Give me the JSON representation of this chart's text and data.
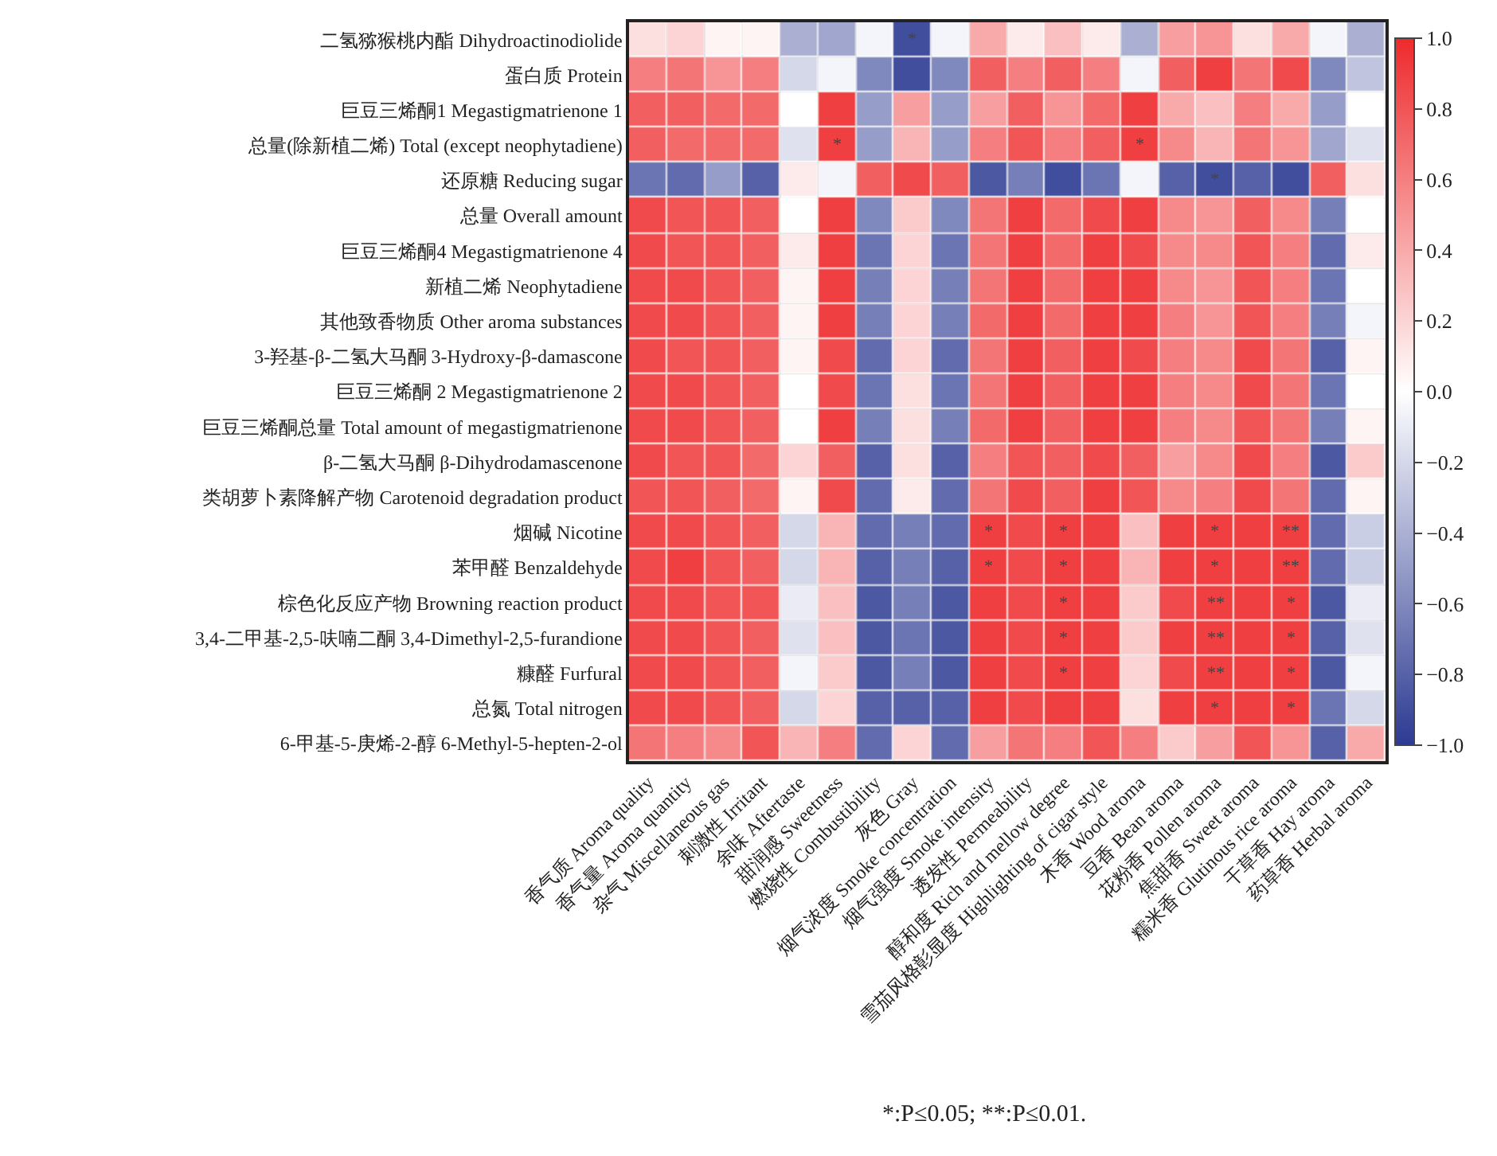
{
  "chart_data": {
    "type": "heatmap",
    "categories": [
      "香气质 Aroma quality",
      "香气量 Aroma quantity",
      "杂气 Miscellaneous gas",
      "刺激性 Irritant",
      "余味 Aftertaste",
      "甜润感 Sweetness",
      "燃烧性 Combustibility",
      "灰色 Gray",
      "烟气浓度 Smoke concentration",
      "烟气强度 Smoke intensity",
      "透发性 Permeability",
      "醇和度 Rich and mellow degree",
      "雪茄风格彰显度 Highlighting of cigar style",
      "木香 Wood aroma",
      "豆香 Bean aroma",
      "花粉香 Pollen aroma",
      "焦甜香 Sweet aroma",
      "糯米香 Glutinous rice aroma",
      "干草香 Hay aroma",
      "药草香 Herbal aroma"
    ],
    "y_categories": [
      "二氢猕猴桃内酯 Dihydroactinodiolide",
      "蛋白质 Protein",
      "巨豆三烯酮1 Megastigmatrienone 1",
      "总量(除新植二烯) Total (except neophytadiene)",
      "还原糖 Reducing sugar",
      "总量 Overall amount",
      "巨豆三烯酮4 Megastigmatrienone 4",
      "新植二烯 Neophytadiene",
      "其他致香物质 Other aroma substances",
      "3-羟基-β-二氢大马酮 3-Hydroxy-β-damascone",
      "巨豆三烯酮 2 Megastigmatrienone 2",
      "巨豆三烯酮总量 Total amount of megastigmatrienone",
      "β-二氢大马酮 β-Dihydrodamascenone",
      "类胡萝卜素降解产物 Carotenoid degradation product",
      "烟碱 Nicotine",
      "苯甲醛 Benzaldehyde",
      "棕色化反应产物 Browning reaction product",
      "3,4-二甲基-2,5-呋喃二酮 3,4-Dimethyl-2,5-furandione",
      "糠醛 Furfural",
      "总氮 Total nitrogen",
      "6-甲基-5-庚烯-2-醇 6-Methyl-5-hepten-2-ol"
    ],
    "cells": [
      [
        0.15,
        0.2,
        0.05,
        0.05,
        -0.4,
        -0.45,
        -0.05,
        -0.9,
        -0.05,
        0.4,
        0.1,
        0.3,
        0.1,
        -0.4,
        0.45,
        0.5,
        0.15,
        0.4,
        -0.05,
        -0.4
      ],
      [
        0.6,
        0.65,
        0.5,
        0.6,
        -0.2,
        -0.05,
        -0.6,
        -0.9,
        -0.6,
        0.75,
        0.6,
        0.75,
        0.6,
        -0.05,
        0.75,
        0.9,
        0.65,
        0.85,
        -0.6,
        -0.3
      ],
      [
        0.75,
        0.75,
        0.7,
        0.7,
        0.0,
        0.9,
        -0.5,
        0.45,
        -0.5,
        0.45,
        0.75,
        0.5,
        0.7,
        0.9,
        0.4,
        0.3,
        0.6,
        0.4,
        -0.5,
        0.0
      ],
      [
        0.75,
        0.7,
        0.7,
        0.7,
        -0.15,
        0.9,
        -0.5,
        0.35,
        -0.5,
        0.6,
        0.8,
        0.6,
        0.75,
        0.9,
        0.55,
        0.35,
        0.65,
        0.5,
        -0.45,
        -0.15
      ],
      [
        -0.7,
        -0.75,
        -0.5,
        -0.8,
        0.1,
        -0.05,
        0.75,
        0.85,
        0.75,
        -0.85,
        -0.65,
        -0.9,
        -0.7,
        -0.05,
        -0.8,
        -0.9,
        -0.8,
        -0.9,
        0.75,
        0.15
      ],
      [
        0.85,
        0.8,
        0.8,
        0.75,
        0.0,
        0.9,
        -0.6,
        0.25,
        -0.6,
        0.65,
        0.9,
        0.7,
        0.85,
        0.9,
        0.55,
        0.5,
        0.75,
        0.55,
        -0.65,
        0.0
      ],
      [
        0.85,
        0.8,
        0.8,
        0.75,
        0.1,
        0.9,
        -0.7,
        0.2,
        -0.7,
        0.65,
        0.9,
        0.7,
        0.9,
        0.85,
        0.55,
        0.55,
        0.8,
        0.6,
        -0.75,
        0.1
      ],
      [
        0.85,
        0.85,
        0.8,
        0.75,
        0.05,
        0.9,
        -0.65,
        0.2,
        -0.65,
        0.65,
        0.9,
        0.7,
        0.9,
        0.9,
        0.55,
        0.5,
        0.8,
        0.6,
        -0.7,
        0.0
      ],
      [
        0.85,
        0.85,
        0.8,
        0.75,
        0.05,
        0.9,
        -0.65,
        0.2,
        -0.65,
        0.7,
        0.9,
        0.7,
        0.9,
        0.9,
        0.6,
        0.5,
        0.8,
        0.6,
        -0.65,
        -0.05
      ],
      [
        0.85,
        0.8,
        0.8,
        0.75,
        0.05,
        0.85,
        -0.75,
        0.2,
        -0.75,
        0.65,
        0.9,
        0.75,
        0.9,
        0.85,
        0.6,
        0.55,
        0.85,
        0.65,
        -0.8,
        0.05
      ],
      [
        0.85,
        0.85,
        0.8,
        0.75,
        0.0,
        0.85,
        -0.7,
        0.15,
        -0.7,
        0.65,
        0.9,
        0.75,
        0.9,
        0.9,
        0.6,
        0.55,
        0.85,
        0.65,
        -0.7,
        0.0
      ],
      [
        0.85,
        0.85,
        0.8,
        0.75,
        0.0,
        0.9,
        -0.65,
        0.15,
        -0.65,
        0.7,
        0.9,
        0.75,
        0.9,
        0.9,
        0.6,
        0.55,
        0.8,
        0.65,
        -0.65,
        0.05
      ],
      [
        0.85,
        0.8,
        0.8,
        0.7,
        0.2,
        0.75,
        -0.8,
        0.15,
        -0.8,
        0.6,
        0.8,
        0.75,
        0.85,
        0.75,
        0.45,
        0.55,
        0.85,
        0.6,
        -0.85,
        0.25
      ],
      [
        0.8,
        0.8,
        0.75,
        0.7,
        0.05,
        0.85,
        -0.75,
        0.1,
        -0.75,
        0.65,
        0.85,
        0.75,
        0.9,
        0.8,
        0.55,
        0.6,
        0.85,
        0.65,
        -0.75,
        0.05
      ],
      [
        0.85,
        0.85,
        0.8,
        0.75,
        -0.2,
        0.35,
        -0.75,
        -0.65,
        -0.75,
        0.9,
        0.85,
        0.9,
        0.9,
        0.3,
        0.9,
        0.9,
        0.9,
        0.9,
        -0.75,
        -0.25
      ],
      [
        0.85,
        0.9,
        0.8,
        0.75,
        -0.2,
        0.35,
        -0.8,
        -0.65,
        -0.8,
        0.9,
        0.85,
        0.9,
        0.9,
        0.35,
        0.9,
        0.9,
        0.9,
        0.9,
        -0.75,
        -0.25
      ],
      [
        0.85,
        0.85,
        0.8,
        0.8,
        -0.1,
        0.3,
        -0.85,
        -0.65,
        -0.85,
        0.9,
        0.85,
        0.9,
        0.9,
        0.25,
        0.85,
        0.9,
        0.9,
        0.9,
        -0.85,
        -0.1
      ],
      [
        0.85,
        0.85,
        0.8,
        0.75,
        -0.15,
        0.3,
        -0.85,
        -0.7,
        -0.85,
        0.9,
        0.85,
        0.9,
        0.9,
        0.25,
        0.9,
        0.9,
        0.9,
        0.9,
        -0.8,
        -0.15
      ],
      [
        0.85,
        0.85,
        0.8,
        0.75,
        -0.05,
        0.25,
        -0.85,
        -0.65,
        -0.85,
        0.9,
        0.85,
        0.9,
        0.9,
        0.2,
        0.85,
        0.9,
        0.9,
        0.9,
        -0.85,
        -0.05
      ],
      [
        0.85,
        0.85,
        0.8,
        0.75,
        -0.2,
        0.2,
        -0.8,
        -0.8,
        -0.8,
        0.9,
        0.85,
        0.9,
        0.9,
        0.15,
        0.9,
        0.9,
        0.9,
        0.9,
        -0.7,
        -0.2
      ],
      [
        0.65,
        0.6,
        0.55,
        0.8,
        0.35,
        0.6,
        -0.75,
        0.2,
        -0.75,
        0.45,
        0.65,
        0.6,
        0.8,
        0.6,
        0.25,
        0.45,
        0.8,
        0.5,
        -0.8,
        0.4
      ]
    ],
    "cell_labels": [
      [
        null,
        null,
        null,
        null,
        null,
        null,
        null,
        "*",
        null,
        null,
        null,
        null,
        null,
        null,
        null,
        null,
        null,
        null,
        null,
        null
      ],
      [
        null,
        null,
        null,
        null,
        null,
        null,
        null,
        null,
        null,
        null,
        null,
        null,
        null,
        null,
        null,
        null,
        null,
        null,
        null,
        null
      ],
      [
        null,
        null,
        null,
        null,
        null,
        null,
        null,
        null,
        null,
        null,
        null,
        null,
        null,
        null,
        null,
        null,
        null,
        null,
        null,
        null
      ],
      [
        null,
        null,
        null,
        null,
        null,
        "*",
        null,
        null,
        null,
        null,
        null,
        null,
        null,
        "*",
        null,
        null,
        null,
        null,
        null,
        null
      ],
      [
        null,
        null,
        null,
        null,
        null,
        null,
        null,
        null,
        null,
        null,
        null,
        null,
        null,
        null,
        null,
        "*",
        null,
        null,
        null,
        null
      ],
      [
        null,
        null,
        null,
        null,
        null,
        null,
        null,
        null,
        null,
        null,
        null,
        null,
        null,
        null,
        null,
        null,
        null,
        null,
        null,
        null
      ],
      [
        null,
        null,
        null,
        null,
        null,
        null,
        null,
        null,
        null,
        null,
        null,
        null,
        null,
        null,
        null,
        null,
        null,
        null,
        null,
        null
      ],
      [
        null,
        null,
        null,
        null,
        null,
        null,
        null,
        null,
        null,
        null,
        null,
        null,
        null,
        null,
        null,
        null,
        null,
        null,
        null,
        null
      ],
      [
        null,
        null,
        null,
        null,
        null,
        null,
        null,
        null,
        null,
        null,
        null,
        null,
        null,
        null,
        null,
        null,
        null,
        null,
        null,
        null
      ],
      [
        null,
        null,
        null,
        null,
        null,
        null,
        null,
        null,
        null,
        null,
        null,
        null,
        null,
        null,
        null,
        null,
        null,
        null,
        null,
        null
      ],
      [
        null,
        null,
        null,
        null,
        null,
        null,
        null,
        null,
        null,
        null,
        null,
        null,
        null,
        null,
        null,
        null,
        null,
        null,
        null,
        null
      ],
      [
        null,
        null,
        null,
        null,
        null,
        null,
        null,
        null,
        null,
        null,
        null,
        null,
        null,
        null,
        null,
        null,
        null,
        null,
        null,
        null
      ],
      [
        null,
        null,
        null,
        null,
        null,
        null,
        null,
        null,
        null,
        null,
        null,
        null,
        null,
        null,
        null,
        null,
        null,
        null,
        null,
        null
      ],
      [
        null,
        null,
        null,
        null,
        null,
        null,
        null,
        null,
        null,
        null,
        null,
        null,
        null,
        null,
        null,
        null,
        null,
        null,
        null,
        null
      ],
      [
        null,
        null,
        null,
        null,
        null,
        null,
        null,
        null,
        null,
        "*",
        null,
        "*",
        null,
        null,
        null,
        "*",
        null,
        "**",
        null,
        null
      ],
      [
        null,
        null,
        null,
        null,
        null,
        null,
        null,
        null,
        null,
        "*",
        null,
        "*",
        null,
        null,
        null,
        "*",
        null,
        "**",
        null,
        null
      ],
      [
        null,
        null,
        null,
        null,
        null,
        null,
        null,
        null,
        null,
        null,
        null,
        "*",
        null,
        null,
        null,
        "**",
        null,
        "*",
        null,
        null
      ],
      [
        null,
        null,
        null,
        null,
        null,
        null,
        null,
        null,
        null,
        null,
        null,
        "*",
        null,
        null,
        null,
        "**",
        null,
        "*",
        null,
        null
      ],
      [
        null,
        null,
        null,
        null,
        null,
        null,
        null,
        null,
        null,
        null,
        null,
        "*",
        null,
        null,
        null,
        "**",
        null,
        "*",
        null,
        null
      ],
      [
        null,
        null,
        null,
        null,
        null,
        null,
        null,
        null,
        null,
        null,
        null,
        null,
        null,
        null,
        null,
        "*",
        null,
        "*",
        null,
        null
      ],
      [
        null,
        null,
        null,
        null,
        null,
        null,
        null,
        null,
        null,
        null,
        null,
        null,
        null,
        null,
        null,
        null,
        null,
        null,
        null,
        null
      ]
    ],
    "colors": [
      "#2c3a92",
      "#ffffff",
      "#ee2a2c"
    ],
    "clim": [
      -1.0,
      1.0
    ],
    "cticks": [
      {
        "value": 1.0,
        "label": "1.0"
      },
      {
        "value": 0.8,
        "label": "0.8"
      },
      {
        "value": 0.6,
        "label": "0.6"
      },
      {
        "value": 0.4,
        "label": "0.4"
      },
      {
        "value": 0.2,
        "label": "0.2"
      },
      {
        "value": 0.0,
        "label": "0.0"
      },
      {
        "value": -0.2,
        "label": "−0.2"
      },
      {
        "value": -0.4,
        "label": "−0.4"
      },
      {
        "value": -0.6,
        "label": "−0.6"
      },
      {
        "value": -0.8,
        "label": "−0.8"
      },
      {
        "value": -1.0,
        "label": "−1.0"
      }
    ],
    "grid": true,
    "annotations": [
      "*:P≤0.05; **:P≤0.01."
    ]
  }
}
